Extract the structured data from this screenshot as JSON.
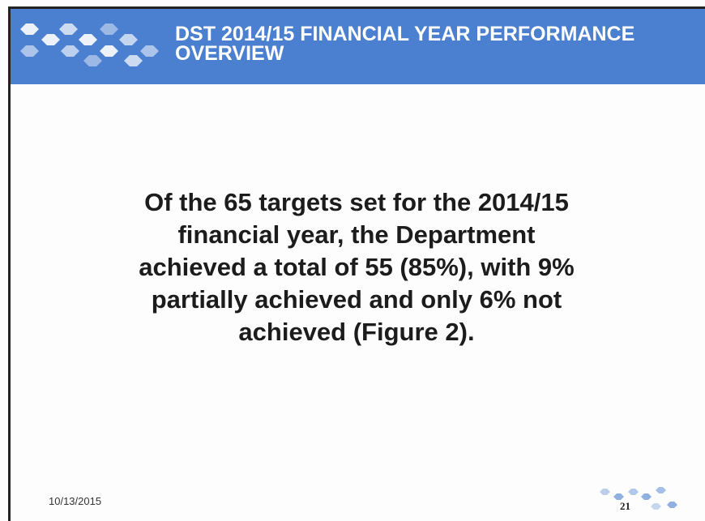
{
  "header": {
    "title_lines": [
      "DST  2014/15 FINANCIAL YEAR PERFORMANCE",
      "OVERVIEW"
    ]
  },
  "body": {
    "lines": [
      "Of the 65 targets set for the 2014/15",
      "financial year, the Department",
      "achieved a total of 55 (85%), with 9%",
      "partially achieved and only 6% not",
      "achieved (Figure 2)."
    ]
  },
  "footer": {
    "date": "10/13/2015",
    "page_number": "21"
  }
}
